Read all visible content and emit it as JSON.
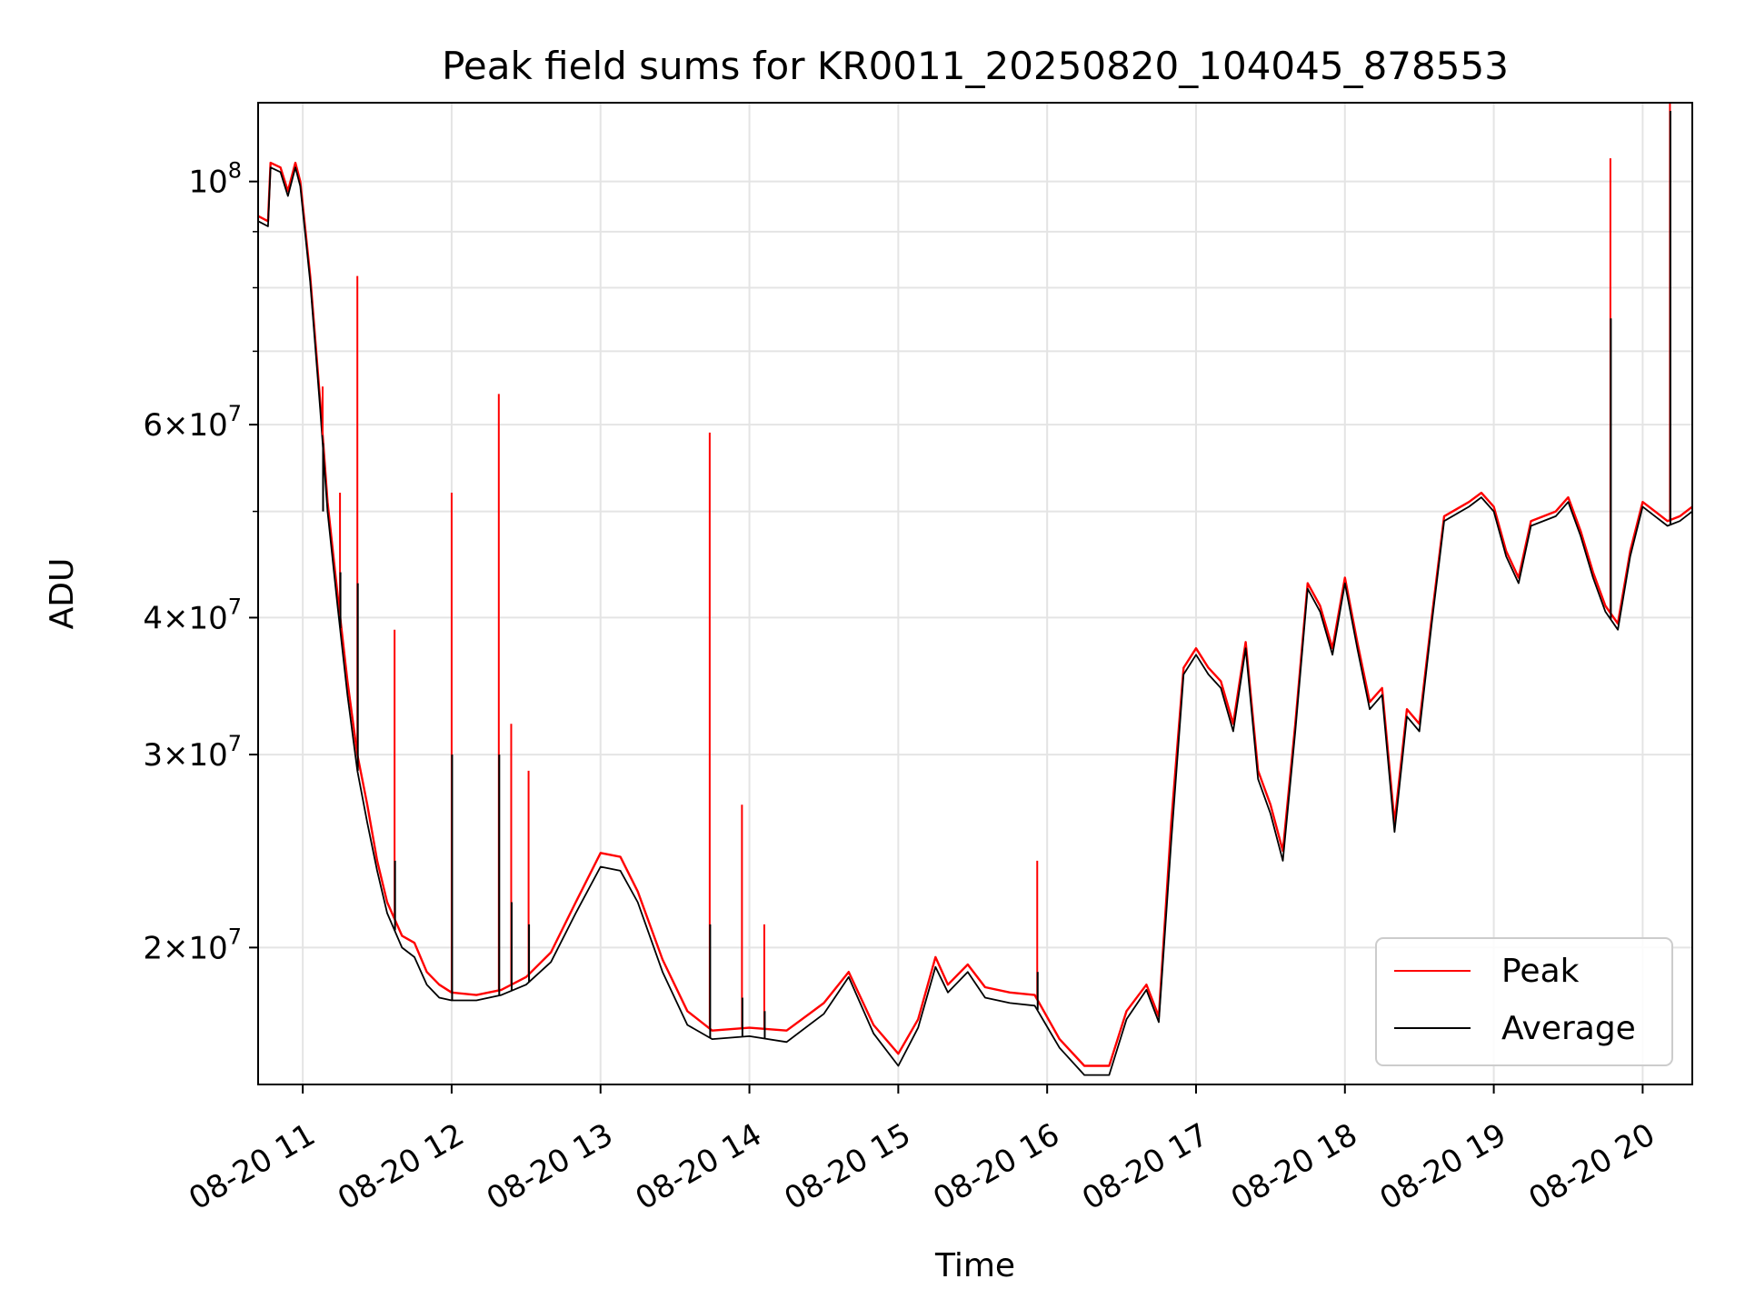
{
  "chart_data": {
    "type": "line",
    "title": "Peak field sums for KR0011_20250820_104045_878553",
    "xlabel": "Time",
    "ylabel": "ADU",
    "y_scale": "log",
    "grid": true,
    "legend_position": "lower-right",
    "xlim": [
      "2025-08-20 10:42",
      "2025-08-20 20:20"
    ],
    "ylim": [
      15000000,
      118000000
    ],
    "x_ticks": [
      {
        "t": "2025-08-20 11:00",
        "label": "08-20 11"
      },
      {
        "t": "2025-08-20 12:00",
        "label": "08-20 12"
      },
      {
        "t": "2025-08-20 13:00",
        "label": "08-20 13"
      },
      {
        "t": "2025-08-20 14:00",
        "label": "08-20 14"
      },
      {
        "t": "2025-08-20 15:00",
        "label": "08-20 15"
      },
      {
        "t": "2025-08-20 16:00",
        "label": "08-20 16"
      },
      {
        "t": "2025-08-20 17:00",
        "label": "08-20 17"
      },
      {
        "t": "2025-08-20 18:00",
        "label": "08-20 18"
      },
      {
        "t": "2025-08-20 19:00",
        "label": "08-20 19"
      },
      {
        "t": "2025-08-20 20:00",
        "label": "08-20 20"
      }
    ],
    "y_major_ticks": [
      {
        "value": 20000000,
        "mantissa": "2",
        "base": "10",
        "exp": "7"
      },
      {
        "value": 30000000,
        "mantissa": "3",
        "base": "10",
        "exp": "7"
      },
      {
        "value": 40000000,
        "mantissa": "4",
        "base": "10",
        "exp": "7"
      },
      {
        "value": 60000000,
        "mantissa": "6",
        "base": "10",
        "exp": "7"
      },
      {
        "value": 100000000,
        "mantissa": "",
        "base": "10",
        "exp": "8"
      }
    ],
    "y_minor_grid": [
      50000000,
      70000000,
      80000000,
      90000000
    ],
    "series": [
      {
        "name": "Peak",
        "color": "#ff0000",
        "points": [
          [
            "2025-08-20 10:42",
            93000000
          ],
          [
            "2025-08-20 10:46",
            92000000
          ],
          [
            "2025-08-20 10:47",
            104000000
          ],
          [
            "2025-08-20 10:51",
            103000000
          ],
          [
            "2025-08-20 10:54",
            98000000
          ],
          [
            "2025-08-20 10:57",
            104000000
          ],
          [
            "2025-08-20 10:59",
            100000000
          ],
          [
            "2025-08-20 11:03",
            82000000
          ],
          [
            "2025-08-20 11:07",
            63000000
          ],
          [
            "2025-08-20 11:10",
            51000000
          ],
          [
            "2025-08-20 11:14",
            42000000
          ],
          [
            "2025-08-20 11:18",
            35000000
          ],
          [
            "2025-08-20 11:22",
            30000000
          ],
          [
            "2025-08-20 11:26",
            27000000
          ],
          [
            "2025-08-20 11:30",
            24000000
          ],
          [
            "2025-08-20 11:34",
            22000000
          ],
          [
            "2025-08-20 11:40",
            20500000
          ],
          [
            "2025-08-20 11:45",
            20200000
          ],
          [
            "2025-08-20 11:50",
            19000000
          ],
          [
            "2025-08-20 11:55",
            18500000
          ],
          [
            "2025-08-20 12:00",
            18200000
          ],
          [
            "2025-08-20 12:10",
            18100000
          ],
          [
            "2025-08-20 12:20",
            18300000
          ],
          [
            "2025-08-20 12:30",
            18800000
          ],
          [
            "2025-08-20 12:40",
            19800000
          ],
          [
            "2025-08-20 12:50",
            22000000
          ],
          [
            "2025-08-20 13:00",
            24400000
          ],
          [
            "2025-08-20 13:08",
            24200000
          ],
          [
            "2025-08-20 13:15",
            22500000
          ],
          [
            "2025-08-20 13:25",
            19500000
          ],
          [
            "2025-08-20 13:35",
            17500000
          ],
          [
            "2025-08-20 13:45",
            16800000
          ],
          [
            "2025-08-20 14:00",
            16900000
          ],
          [
            "2025-08-20 14:15",
            16800000
          ],
          [
            "2025-08-20 14:30",
            17800000
          ],
          [
            "2025-08-20 14:40",
            19000000
          ],
          [
            "2025-08-20 14:50",
            17000000
          ],
          [
            "2025-08-20 15:00",
            16000000
          ],
          [
            "2025-08-20 15:08",
            17200000
          ],
          [
            "2025-08-20 15:15",
            19600000
          ],
          [
            "2025-08-20 15:20",
            18500000
          ],
          [
            "2025-08-20 15:28",
            19300000
          ],
          [
            "2025-08-20 15:35",
            18400000
          ],
          [
            "2025-08-20 15:45",
            18200000
          ],
          [
            "2025-08-20 15:55",
            18100000
          ],
          [
            "2025-08-20 16:05",
            16500000
          ],
          [
            "2025-08-20 16:15",
            15600000
          ],
          [
            "2025-08-20 16:25",
            15600000
          ],
          [
            "2025-08-20 16:32",
            17500000
          ],
          [
            "2025-08-20 16:40",
            18500000
          ],
          [
            "2025-08-20 16:45",
            17300000
          ],
          [
            "2025-08-20 16:50",
            26000000
          ],
          [
            "2025-08-20 16:55",
            36000000
          ],
          [
            "2025-08-20 17:00",
            37500000
          ],
          [
            "2025-08-20 17:05",
            36000000
          ],
          [
            "2025-08-20 17:10",
            35000000
          ],
          [
            "2025-08-20 17:15",
            32000000
          ],
          [
            "2025-08-20 17:20",
            38000000
          ],
          [
            "2025-08-20 17:25",
            29000000
          ],
          [
            "2025-08-20 17:30",
            27000000
          ],
          [
            "2025-08-20 17:35",
            24500000
          ],
          [
            "2025-08-20 17:40",
            32000000
          ],
          [
            "2025-08-20 17:45",
            43000000
          ],
          [
            "2025-08-20 17:50",
            41000000
          ],
          [
            "2025-08-20 17:55",
            37500000
          ],
          [
            "2025-08-20 18:00",
            43500000
          ],
          [
            "2025-08-20 18:05",
            38000000
          ],
          [
            "2025-08-20 18:10",
            33500000
          ],
          [
            "2025-08-20 18:15",
            34500000
          ],
          [
            "2025-08-20 18:20",
            26000000
          ],
          [
            "2025-08-20 18:25",
            33000000
          ],
          [
            "2025-08-20 18:30",
            32000000
          ],
          [
            "2025-08-20 18:35",
            40000000
          ],
          [
            "2025-08-20 18:40",
            49500000
          ],
          [
            "2025-08-20 18:50",
            51000000
          ],
          [
            "2025-08-20 18:55",
            52000000
          ],
          [
            "2025-08-20 19:00",
            50500000
          ],
          [
            "2025-08-20 19:05",
            46000000
          ],
          [
            "2025-08-20 19:10",
            43500000
          ],
          [
            "2025-08-20 19:15",
            49000000
          ],
          [
            "2025-08-20 19:25",
            50000000
          ],
          [
            "2025-08-20 19:30",
            51500000
          ],
          [
            "2025-08-20 19:35",
            48000000
          ],
          [
            "2025-08-20 19:40",
            44000000
          ],
          [
            "2025-08-20 19:45",
            41000000
          ],
          [
            "2025-08-20 19:50",
            39500000
          ],
          [
            "2025-08-20 19:55",
            46000000
          ],
          [
            "2025-08-20 20:00",
            51000000
          ],
          [
            "2025-08-20 20:05",
            50000000
          ],
          [
            "2025-08-20 20:10",
            49000000
          ],
          [
            "2025-08-20 20:15",
            49500000
          ],
          [
            "2025-08-20 20:20",
            50500000
          ]
        ]
      },
      {
        "name": "Average",
        "color": "#000000",
        "points": [
          [
            "2025-08-20 10:42",
            92000000
          ],
          [
            "2025-08-20 10:46",
            91000000
          ],
          [
            "2025-08-20 10:47",
            103000000
          ],
          [
            "2025-08-20 10:51",
            102000000
          ],
          [
            "2025-08-20 10:54",
            97000000
          ],
          [
            "2025-08-20 10:57",
            103000000
          ],
          [
            "2025-08-20 10:59",
            99000000
          ],
          [
            "2025-08-20 11:03",
            81000000
          ],
          [
            "2025-08-20 11:07",
            62000000
          ],
          [
            "2025-08-20 11:10",
            50000000
          ],
          [
            "2025-08-20 11:14",
            41000000
          ],
          [
            "2025-08-20 11:18",
            34000000
          ],
          [
            "2025-08-20 11:22",
            29000000
          ],
          [
            "2025-08-20 11:26",
            26000000
          ],
          [
            "2025-08-20 11:30",
            23500000
          ],
          [
            "2025-08-20 11:34",
            21500000
          ],
          [
            "2025-08-20 11:40",
            20000000
          ],
          [
            "2025-08-20 11:45",
            19600000
          ],
          [
            "2025-08-20 11:50",
            18500000
          ],
          [
            "2025-08-20 11:55",
            18000000
          ],
          [
            "2025-08-20 12:00",
            17900000
          ],
          [
            "2025-08-20 12:10",
            17900000
          ],
          [
            "2025-08-20 12:20",
            18100000
          ],
          [
            "2025-08-20 12:30",
            18500000
          ],
          [
            "2025-08-20 12:40",
            19400000
          ],
          [
            "2025-08-20 12:50",
            21500000
          ],
          [
            "2025-08-20 13:00",
            23700000
          ],
          [
            "2025-08-20 13:08",
            23500000
          ],
          [
            "2025-08-20 13:15",
            22000000
          ],
          [
            "2025-08-20 13:25",
            19000000
          ],
          [
            "2025-08-20 13:35",
            17000000
          ],
          [
            "2025-08-20 13:45",
            16500000
          ],
          [
            "2025-08-20 14:00",
            16600000
          ],
          [
            "2025-08-20 14:15",
            16400000
          ],
          [
            "2025-08-20 14:30",
            17400000
          ],
          [
            "2025-08-20 14:40",
            18800000
          ],
          [
            "2025-08-20 14:50",
            16700000
          ],
          [
            "2025-08-20 15:00",
            15600000
          ],
          [
            "2025-08-20 15:08",
            16900000
          ],
          [
            "2025-08-20 15:15",
            19200000
          ],
          [
            "2025-08-20 15:20",
            18200000
          ],
          [
            "2025-08-20 15:28",
            19000000
          ],
          [
            "2025-08-20 15:35",
            18000000
          ],
          [
            "2025-08-20 15:45",
            17800000
          ],
          [
            "2025-08-20 15:55",
            17700000
          ],
          [
            "2025-08-20 16:05",
            16200000
          ],
          [
            "2025-08-20 16:15",
            15300000
          ],
          [
            "2025-08-20 16:25",
            15300000
          ],
          [
            "2025-08-20 16:32",
            17200000
          ],
          [
            "2025-08-20 16:40",
            18300000
          ],
          [
            "2025-08-20 16:45",
            17100000
          ],
          [
            "2025-08-20 16:50",
            25000000
          ],
          [
            "2025-08-20 16:55",
            35500000
          ],
          [
            "2025-08-20 17:00",
            37000000
          ],
          [
            "2025-08-20 17:05",
            35500000
          ],
          [
            "2025-08-20 17:10",
            34500000
          ],
          [
            "2025-08-20 17:15",
            31500000
          ],
          [
            "2025-08-20 17:20",
            37500000
          ],
          [
            "2025-08-20 17:25",
            28500000
          ],
          [
            "2025-08-20 17:30",
            26500000
          ],
          [
            "2025-08-20 17:35",
            24000000
          ],
          [
            "2025-08-20 17:40",
            31500000
          ],
          [
            "2025-08-20 17:45",
            42500000
          ],
          [
            "2025-08-20 17:50",
            40500000
          ],
          [
            "2025-08-20 17:55",
            37000000
          ],
          [
            "2025-08-20 18:00",
            43000000
          ],
          [
            "2025-08-20 18:05",
            37500000
          ],
          [
            "2025-08-20 18:10",
            33000000
          ],
          [
            "2025-08-20 18:15",
            34000000
          ],
          [
            "2025-08-20 18:20",
            25500000
          ],
          [
            "2025-08-20 18:25",
            32500000
          ],
          [
            "2025-08-20 18:30",
            31500000
          ],
          [
            "2025-08-20 18:35",
            39500000
          ],
          [
            "2025-08-20 18:40",
            49000000
          ],
          [
            "2025-08-20 18:50",
            50500000
          ],
          [
            "2025-08-20 18:55",
            51500000
          ],
          [
            "2025-08-20 19:00",
            50000000
          ],
          [
            "2025-08-20 19:05",
            45500000
          ],
          [
            "2025-08-20 19:10",
            43000000
          ],
          [
            "2025-08-20 19:15",
            48500000
          ],
          [
            "2025-08-20 19:25",
            49500000
          ],
          [
            "2025-08-20 19:30",
            51000000
          ],
          [
            "2025-08-20 19:35",
            47500000
          ],
          [
            "2025-08-20 19:40",
            43500000
          ],
          [
            "2025-08-20 19:45",
            40500000
          ],
          [
            "2025-08-20 19:50",
            39000000
          ],
          [
            "2025-08-20 19:55",
            45500000
          ],
          [
            "2025-08-20 20:00",
            50500000
          ],
          [
            "2025-08-20 20:05",
            49500000
          ],
          [
            "2025-08-20 20:10",
            48500000
          ],
          [
            "2025-08-20 20:15",
            49000000
          ],
          [
            "2025-08-20 20:20",
            50000000
          ]
        ]
      }
    ],
    "spikes": [
      {
        "t": "2025-08-20 11:08",
        "peak": 65000000,
        "avg": 50000000
      },
      {
        "t": "2025-08-20 11:15",
        "peak": 52000000,
        "avg": 44000000
      },
      {
        "t": "2025-08-20 11:22",
        "peak": 82000000,
        "avg": 43000000
      },
      {
        "t": "2025-08-20 11:37",
        "peak": 39000000,
        "avg": 24000000
      },
      {
        "t": "2025-08-20 12:00",
        "peak": 52000000,
        "avg": 30000000
      },
      {
        "t": "2025-08-20 12:19",
        "peak": 64000000,
        "avg": 30000000
      },
      {
        "t": "2025-08-20 12:24",
        "peak": 32000000,
        "avg": 22000000
      },
      {
        "t": "2025-08-20 12:31",
        "peak": 29000000,
        "avg": 21000000
      },
      {
        "t": "2025-08-20 13:44",
        "peak": 59000000,
        "avg": 21000000
      },
      {
        "t": "2025-08-20 13:57",
        "peak": 27000000,
        "avg": 18000000
      },
      {
        "t": "2025-08-20 14:06",
        "peak": 21000000,
        "avg": 17500000
      },
      {
        "t": "2025-08-20 15:56",
        "peak": 24000000,
        "avg": 19000000
      },
      {
        "t": "2025-08-20 19:47",
        "peak": 105000000,
        "avg": 75000000
      },
      {
        "t": "2025-08-20 20:11",
        "peak": 118000000,
        "avg": 116000000
      }
    ]
  }
}
